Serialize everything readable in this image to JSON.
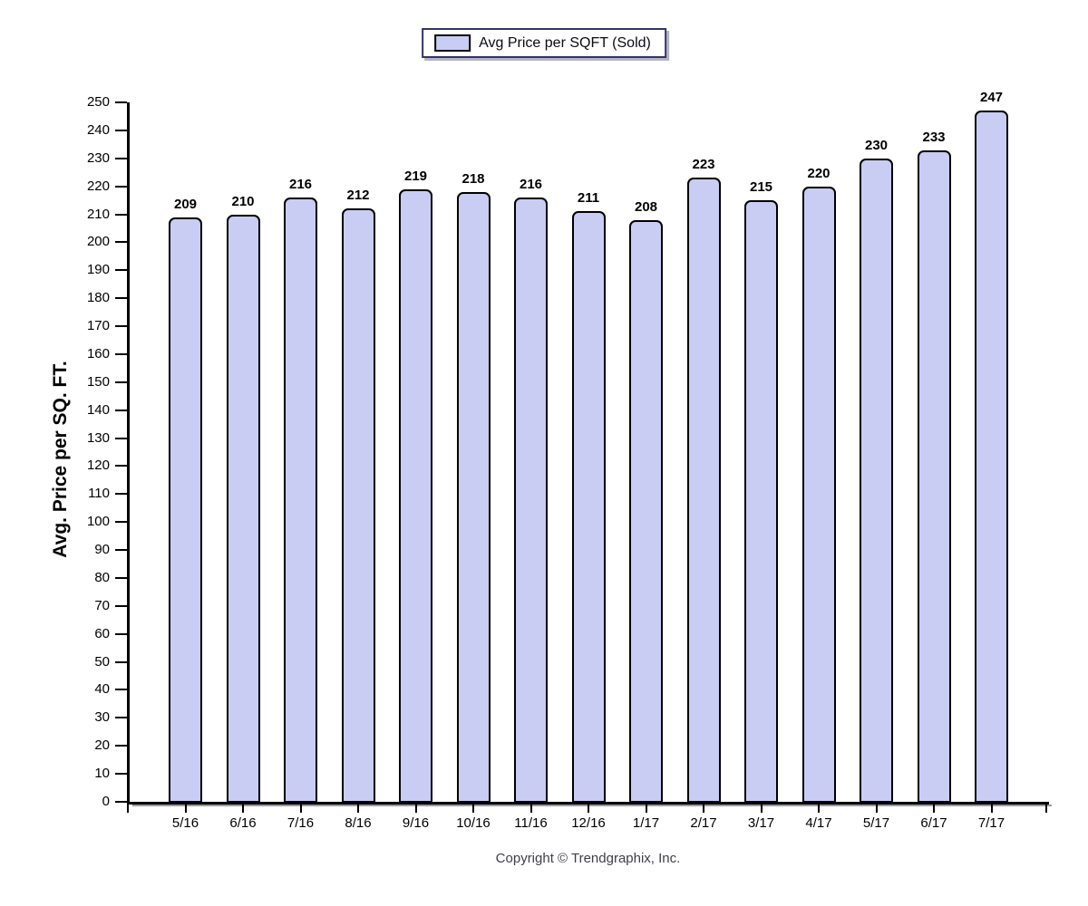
{
  "legend": {
    "label": "Avg Price per SQFT (Sold)"
  },
  "y_axis": {
    "title": "Avg. Price per SQ. FT."
  },
  "footer": {
    "copyright": "Copyright © Trendgraphix, Inc."
  },
  "colors": {
    "bar_fill": "#C9CCF3",
    "bar_border": "#000000",
    "legend_border": "#32326B",
    "axis": "#000000",
    "axis_shadow": "#9a9aa2"
  },
  "chart_data": {
    "type": "bar",
    "title": "",
    "legend": [
      "Avg Price per SQFT (Sold)"
    ],
    "legend_position": "top-center",
    "xlabel": "",
    "ylabel": "Avg. Price per SQ. FT.",
    "categories": [
      "5/16",
      "6/16",
      "7/16",
      "8/16",
      "9/16",
      "10/16",
      "11/16",
      "12/16",
      "1/17",
      "2/17",
      "3/17",
      "4/17",
      "5/17",
      "6/17",
      "7/17"
    ],
    "values": [
      209,
      210,
      216,
      212,
      219,
      218,
      216,
      211,
      208,
      223,
      215,
      220,
      230,
      233,
      247
    ],
    "bar_value_labels": true,
    "ylim": [
      0,
      250
    ],
    "ytick_step": 10,
    "grid": false
  }
}
